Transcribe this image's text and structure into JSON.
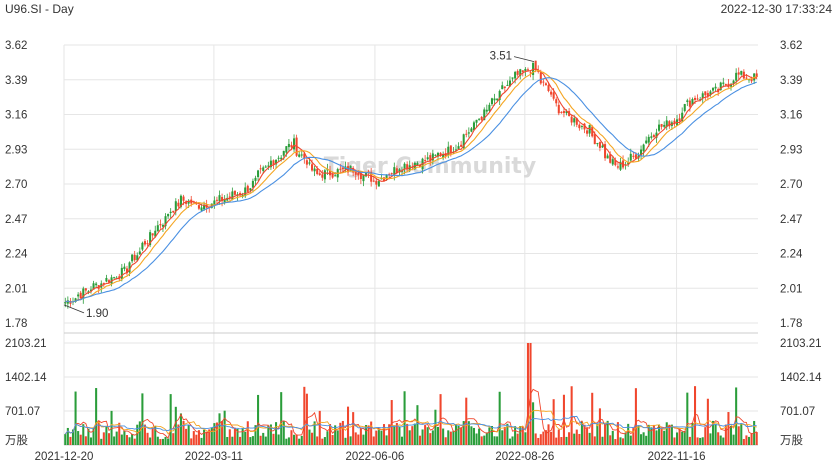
{
  "header": {
    "title": "U96.SI - Day",
    "timestamp": "2022-12-30 17:33:24"
  },
  "watermark": "Tiger Community",
  "colors": {
    "up": "#2a9d3a",
    "down": "#f0462d",
    "ma5": "#f0462d",
    "ma10": "#f5a623",
    "ma20": "#4a90e2",
    "grid": "#e6e6e6",
    "axis": "#cccccc"
  },
  "chart_data": {
    "type": "candlestick",
    "price_axis": {
      "min": 1.78,
      "max": 3.62,
      "ticks": [
        "3.62",
        "3.39",
        "3.16",
        "2.93",
        "2.70",
        "2.47",
        "2.24",
        "2.01",
        "1.78"
      ]
    },
    "volume_axis": {
      "max": 2103.21,
      "ticks": [
        "2103.21",
        "1402.14",
        "701.07"
      ],
      "unit": "万股"
    },
    "x_ticks": [
      "2021-12-20",
      "2022-03-11",
      "2022-06-06",
      "2022-08-26",
      "2022-11-16"
    ],
    "annotations": [
      {
        "label": "3.51",
        "date": "2022-08-31",
        "value": 3.51
      },
      {
        "label": "1.90",
        "date": "2021-12-20",
        "value": 1.9
      }
    ],
    "key_prices": [
      {
        "date": "2021-12-20",
        "close": 1.92
      },
      {
        "date": "2022-01-05",
        "close": 2.03
      },
      {
        "date": "2022-01-20",
        "close": 2.12
      },
      {
        "date": "2022-02-05",
        "close": 2.38
      },
      {
        "date": "2022-02-20",
        "close": 2.6
      },
      {
        "date": "2022-03-01",
        "close": 2.56
      },
      {
        "date": "2022-03-11",
        "close": 2.58
      },
      {
        "date": "2022-03-28",
        "close": 2.66
      },
      {
        "date": "2022-04-10",
        "close": 2.84
      },
      {
        "date": "2022-04-22",
        "close": 2.97
      },
      {
        "date": "2022-05-05",
        "close": 2.76
      },
      {
        "date": "2022-05-25",
        "close": 2.8
      },
      {
        "date": "2022-06-06",
        "close": 2.72
      },
      {
        "date": "2022-06-20",
        "close": 2.82
      },
      {
        "date": "2022-07-05",
        "close": 2.86
      },
      {
        "date": "2022-07-20",
        "close": 2.95
      },
      {
        "date": "2022-08-05",
        "close": 3.18
      },
      {
        "date": "2022-08-20",
        "close": 3.4
      },
      {
        "date": "2022-08-31",
        "close": 3.47
      },
      {
        "date": "2022-09-15",
        "close": 3.18
      },
      {
        "date": "2022-10-01",
        "close": 3.05
      },
      {
        "date": "2022-10-15",
        "close": 2.8
      },
      {
        "date": "2022-10-25",
        "close": 2.88
      },
      {
        "date": "2022-11-05",
        "close": 3.06
      },
      {
        "date": "2022-11-16",
        "close": 3.12
      },
      {
        "date": "2022-11-25",
        "close": 3.26
      },
      {
        "date": "2022-12-10",
        "close": 3.32
      },
      {
        "date": "2022-12-20",
        "close": 3.42
      },
      {
        "date": "2022-12-30",
        "close": 3.4
      }
    ],
    "volume_peak": {
      "date": "2022-08-29",
      "value": 2103.21
    },
    "moving_averages": [
      "MA5",
      "MA10",
      "MA20"
    ]
  }
}
